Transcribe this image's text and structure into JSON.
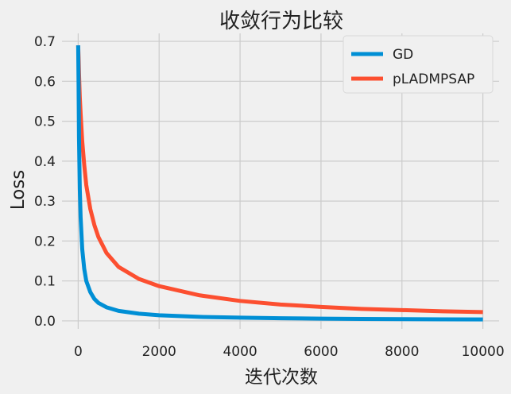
{
  "chart_data": {
    "type": "line",
    "title": "收敛行为比较",
    "xlabel": "迭代次数",
    "ylabel": "Loss",
    "xlim": [
      -400,
      10400
    ],
    "ylim": [
      -0.02,
      0.72
    ],
    "xticks": [
      0,
      2000,
      4000,
      6000,
      8000,
      10000
    ],
    "xtick_labels": [
      "0",
      "2000",
      "4000",
      "6000",
      "8000",
      "10000"
    ],
    "yticks": [
      0.0,
      0.1,
      0.2,
      0.3,
      0.4,
      0.5,
      0.6,
      0.7
    ],
    "ytick_labels": [
      "0.0",
      "0.1",
      "0.2",
      "0.3",
      "0.4",
      "0.5",
      "0.6",
      "0.7"
    ],
    "grid": true,
    "legend_position": "top-right",
    "colors": {
      "background": "#f0f0f0",
      "grid": "#cbcbcb"
    },
    "series": [
      {
        "name": "GD",
        "color": "#008fd5",
        "x": [
          0,
          10,
          20,
          40,
          60,
          100,
          150,
          200,
          300,
          400,
          500,
          700,
          1000,
          1500,
          2000,
          3000,
          4000,
          5000,
          6000,
          7000,
          8000,
          9000,
          10000
        ],
        "y": [
          0.69,
          0.59,
          0.46,
          0.33,
          0.26,
          0.18,
          0.13,
          0.1,
          0.072,
          0.055,
          0.045,
          0.034,
          0.025,
          0.018,
          0.014,
          0.01,
          0.008,
          0.0065,
          0.0056,
          0.0049,
          0.0044,
          0.004,
          0.0036
        ]
      },
      {
        "name": "pLADMPSAP",
        "color": "#fc4f30",
        "x": [
          0,
          10,
          20,
          40,
          60,
          100,
          150,
          200,
          300,
          400,
          500,
          700,
          1000,
          1500,
          2000,
          3000,
          4000,
          5000,
          6000,
          7000,
          8000,
          9000,
          10000
        ],
        "y": [
          0.69,
          0.66,
          0.62,
          0.56,
          0.52,
          0.45,
          0.39,
          0.34,
          0.28,
          0.24,
          0.21,
          0.17,
          0.135,
          0.105,
          0.087,
          0.064,
          0.05,
          0.041,
          0.035,
          0.03,
          0.027,
          0.024,
          0.022
        ]
      }
    ]
  }
}
